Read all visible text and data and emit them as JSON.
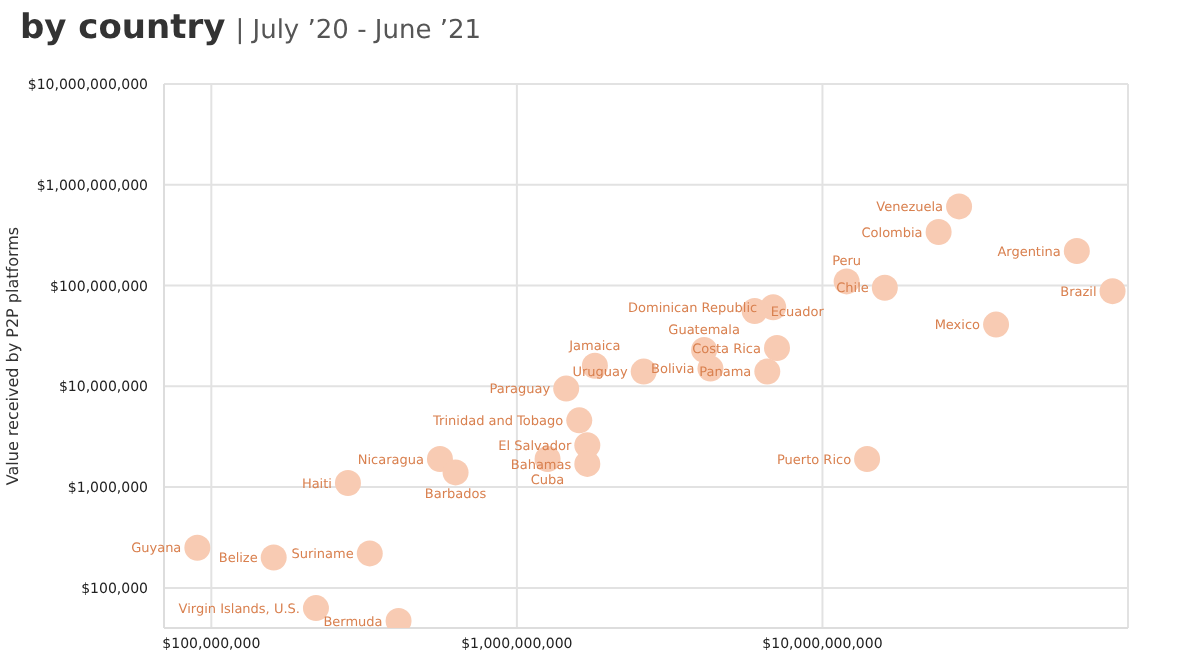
{
  "chart_data": {
    "type": "scatter",
    "title": "by country",
    "subtitle": "| July ’20 - June ’21",
    "ylabel": "Value received by P2P platforms",
    "log": "xy",
    "grid": true,
    "marker": "circle",
    "legend": false,
    "xlim": [
      70000000,
      100000000000
    ],
    "ylim": [
      40000,
      10000000000
    ],
    "xticks": [
      {
        "value": 100000000,
        "label": "$100,000,000"
      },
      {
        "value": 1000000000,
        "label": "$1,000,000,000"
      },
      {
        "value": 10000000000,
        "label": "$10,000,000,000"
      }
    ],
    "yticks": [
      {
        "value": 100000,
        "label": "$100,000"
      },
      {
        "value": 1000000,
        "label": "$1,000,000"
      },
      {
        "value": 10000000,
        "label": "$10,000,000"
      },
      {
        "value": 100000000,
        "label": "$100,000,000"
      },
      {
        "value": 1000000000,
        "label": "$1,000,000,000"
      },
      {
        "value": 10000000000,
        "label": "$10,000,000,000"
      }
    ],
    "series": [
      {
        "color": "#f8cbb3",
        "x": [
          28000000000,
          24000000000,
          68000000000,
          89000000000,
          16000000000,
          12000000000,
          37000000000,
          6900000000,
          6000000000,
          7100000000,
          6600000000,
          4300000000,
          2600000000,
          4100000000,
          1800000000,
          1450000000,
          1600000000,
          1700000000,
          1260000000,
          1700000000,
          560000000,
          630000000,
          280000000,
          90000000,
          160000000,
          330000000,
          220000000,
          410000000,
          14000000000
        ],
        "values": [
          610000000,
          340000000,
          220000000,
          88000000,
          95000000,
          110000000,
          41000000,
          61000000,
          56000000,
          24000000,
          14000000,
          15000000,
          14000000,
          23000000,
          16000000,
          9500000,
          4600000,
          2600000,
          1900000,
          1700000,
          1900000,
          1400000,
          1100000,
          250000,
          200000,
          220000,
          63000,
          47000,
          1900000
        ]
      }
    ],
    "annotations": [
      {
        "text": "Venezuela",
        "x": 28000000000,
        "y": 610000000
      },
      {
        "text": "Colombia",
        "x": 24000000000,
        "y": 340000000
      },
      {
        "text": "Argentina",
        "x": 68000000000,
        "y": 220000000
      },
      {
        "text": "Brazil",
        "x": 89000000000,
        "y": 88000000
      },
      {
        "text": "Chile",
        "x": 16000000000,
        "y": 95000000
      },
      {
        "text": "Peru",
        "x": 12000000000,
        "y": 110000000
      },
      {
        "text": "Mexico",
        "x": 37000000000,
        "y": 41000000
      },
      {
        "text": "Dominican Republic",
        "x": 6900000000,
        "y": 61000000
      },
      {
        "text": "Ecuador",
        "x": 6000000000,
        "y": 56000000
      },
      {
        "text": "Costa Rica",
        "x": 7100000000,
        "y": 24000000
      },
      {
        "text": "Panama",
        "x": 6600000000,
        "y": 14000000
      },
      {
        "text": "Bolivia",
        "x": 4300000000,
        "y": 15000000
      },
      {
        "text": "Uruguay",
        "x": 2600000000,
        "y": 14000000
      },
      {
        "text": "Guatemala",
        "x": 4100000000,
        "y": 23000000
      },
      {
        "text": "Jamaica",
        "x": 1800000000,
        "y": 16000000
      },
      {
        "text": "Paraguay",
        "x": 1450000000,
        "y": 9500000
      },
      {
        "text": "Trinidad and Tobago",
        "x": 1600000000,
        "y": 4600000
      },
      {
        "text": "El Salvador",
        "x": 1700000000,
        "y": 2600000
      },
      {
        "text": "Cuba",
        "x": 1260000000,
        "y": 1900000
      },
      {
        "text": "Bahamas",
        "x": 1700000000,
        "y": 1700000
      },
      {
        "text": "Nicaragua",
        "x": 560000000,
        "y": 1900000
      },
      {
        "text": "Barbados",
        "x": 630000000,
        "y": 1400000
      },
      {
        "text": "Haiti",
        "x": 280000000,
        "y": 1100000
      },
      {
        "text": "Guyana",
        "x": 90000000,
        "y": 250000
      },
      {
        "text": "Belize",
        "x": 160000000,
        "y": 200000
      },
      {
        "text": "Suriname",
        "x": 330000000,
        "y": 220000
      },
      {
        "text": "Virgin Islands, U.S.",
        "x": 220000000,
        "y": 63000
      },
      {
        "text": "Bermuda",
        "x": 410000000,
        "y": 47000
      },
      {
        "text": "Puerto Rico",
        "x": 14000000000,
        "y": 1900000
      }
    ]
  }
}
